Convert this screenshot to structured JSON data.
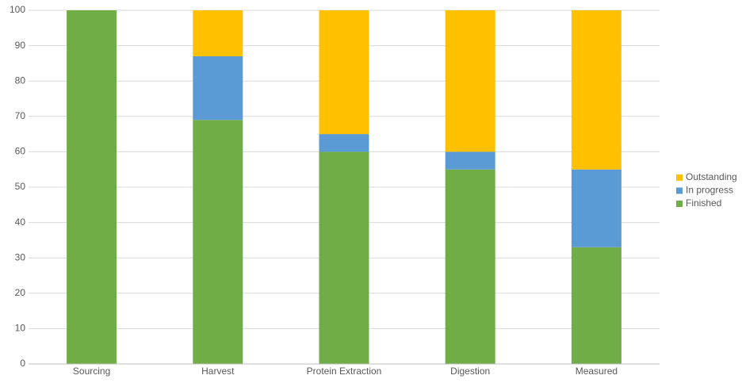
{
  "chart_data": {
    "type": "stacked_bar",
    "categories": [
      "Sourcing",
      "Harvest",
      "Protein Extraction",
      "Digestion",
      "Measured"
    ],
    "series": [
      {
        "name": "Finished",
        "color": "#70ad47",
        "values": [
          100,
          69,
          60,
          55,
          33
        ]
      },
      {
        "name": "In progress",
        "color": "#5b9bd5",
        "values": [
          0,
          18,
          5,
          5,
          22
        ]
      },
      {
        "name": "Outstanding",
        "color": "#ffc000",
        "values": [
          0,
          13,
          35,
          40,
          45
        ]
      }
    ],
    "ylim": [
      0,
      100
    ],
    "yticks": [
      0,
      10,
      20,
      30,
      40,
      50,
      60,
      70,
      80,
      90,
      100
    ],
    "grid": true,
    "legend": "right"
  }
}
